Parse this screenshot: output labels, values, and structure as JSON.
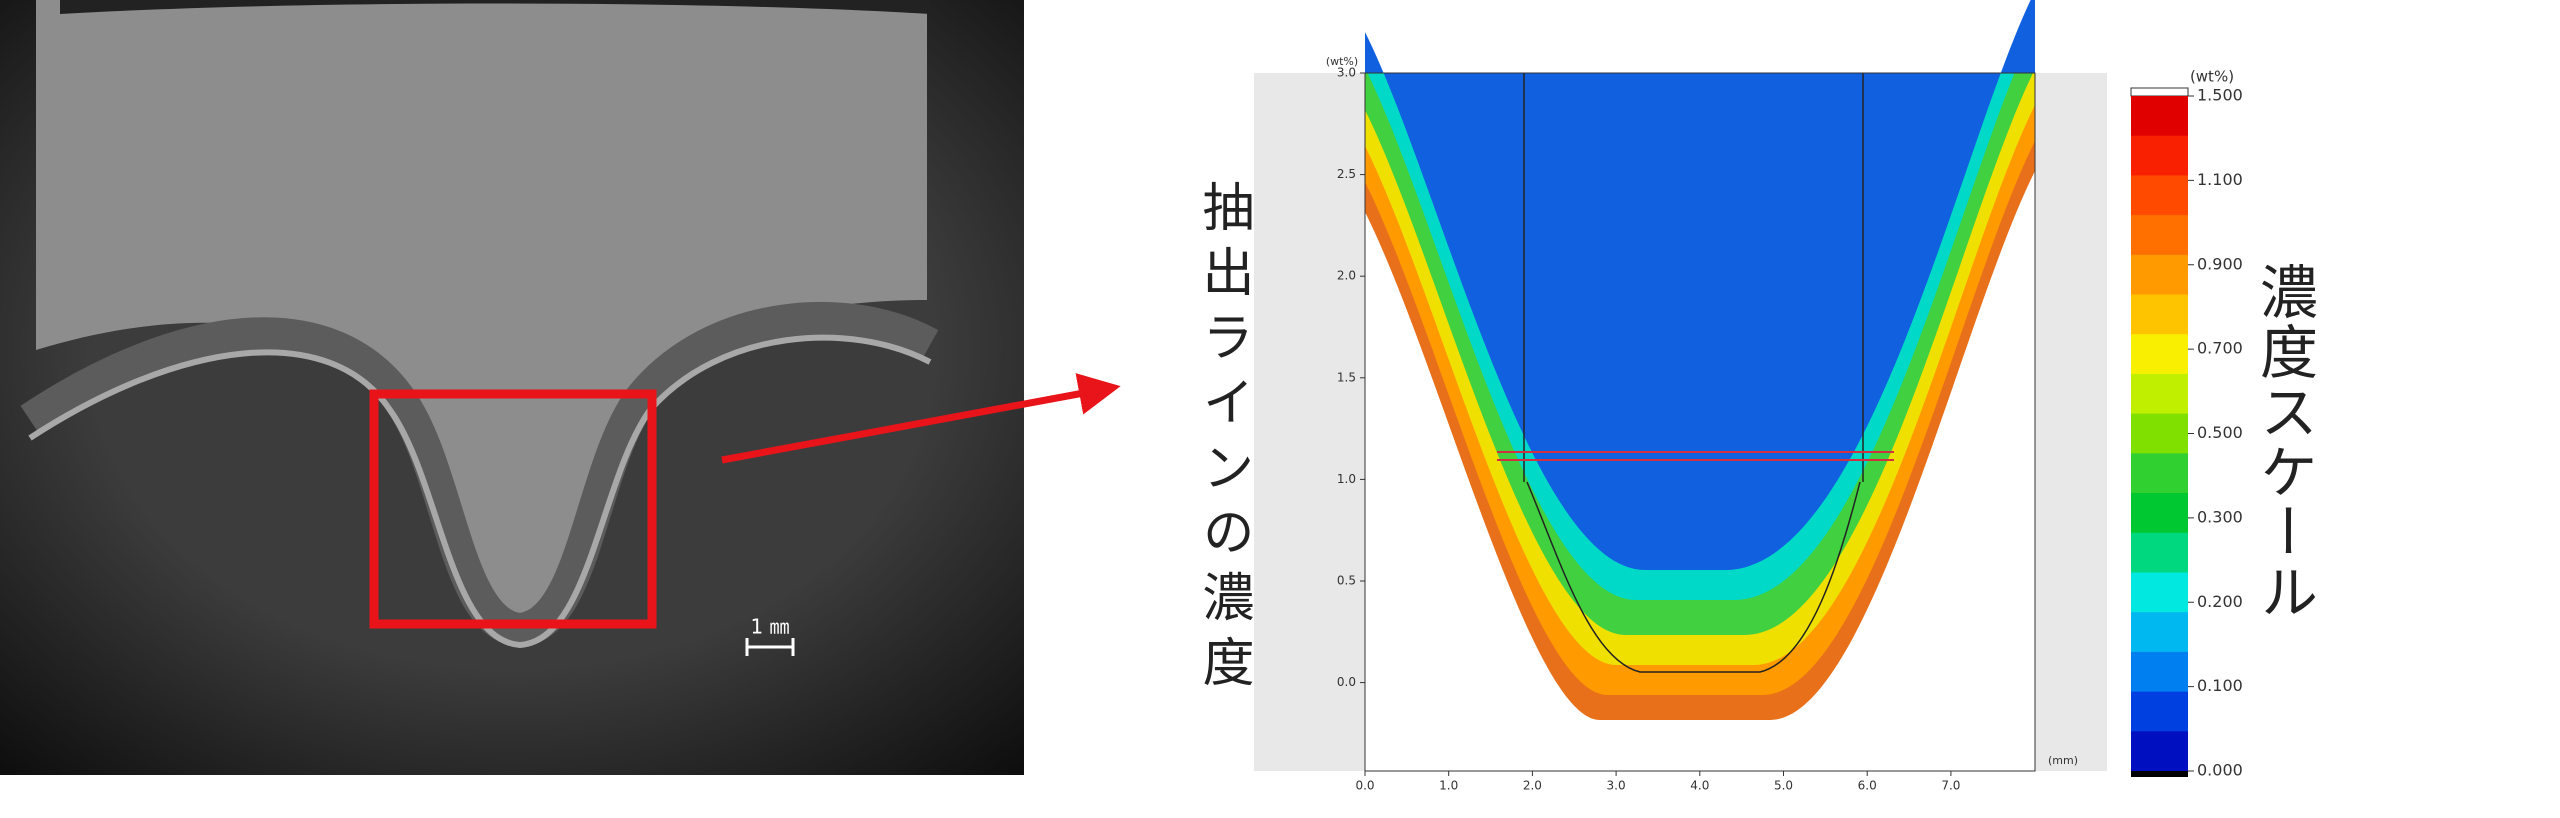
{
  "photo": {
    "scale_label": "1 ㎜"
  },
  "map": {
    "title": "抽出ラインの濃度",
    "y_unit": "(wt%)",
    "x_unit": "(mm)",
    "y_ticks": [
      "3.0",
      "2.5",
      "2.0",
      "1.5",
      "1.0",
      "0.5",
      "0.0"
    ],
    "x_ticks": [
      "0.0",
      "1.0",
      "2.0",
      "3.0",
      "4.0",
      "5.0",
      "6.0",
      "7.0"
    ]
  },
  "color_scale": {
    "title": "濃度スケール",
    "unit": "(wt%)",
    "labels": [
      "1.500",
      "1.100",
      "0.900",
      "0.700",
      "0.500",
      "0.300",
      "0.200",
      "0.100",
      "0.000"
    ]
  }
}
